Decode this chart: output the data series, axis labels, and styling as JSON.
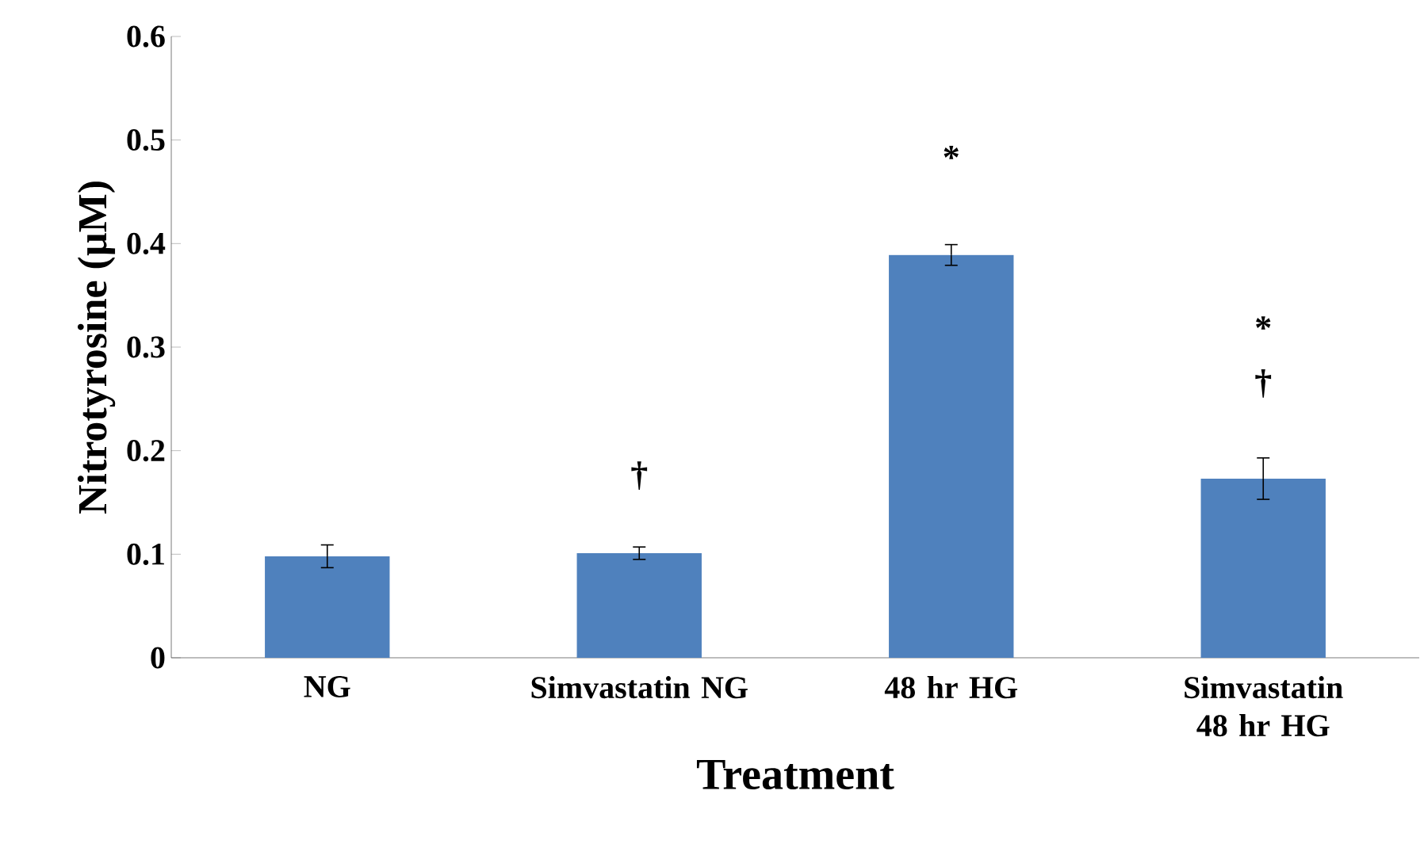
{
  "chart_data": {
    "type": "bar",
    "xlabel": "Treatment",
    "ylabel": "Nitrotyrosine (µM)",
    "categories": [
      "NG",
      "Simvastatin NG",
      "48 hr HG",
      "Simvastatin 48 hr HG"
    ],
    "values": [
      0.098,
      0.101,
      0.389,
      0.173
    ],
    "errors": [
      0.011,
      0.006,
      0.01,
      0.02
    ],
    "color": "#4f81bd",
    "ylim": [
      0,
      0.6
    ],
    "yticks": [
      0,
      0.1,
      0.2,
      0.3,
      0.4,
      0.5,
      0.6
    ],
    "grid": false,
    "annotations": [
      "†",
      "*",
      "*",
      "†"
    ]
  }
}
